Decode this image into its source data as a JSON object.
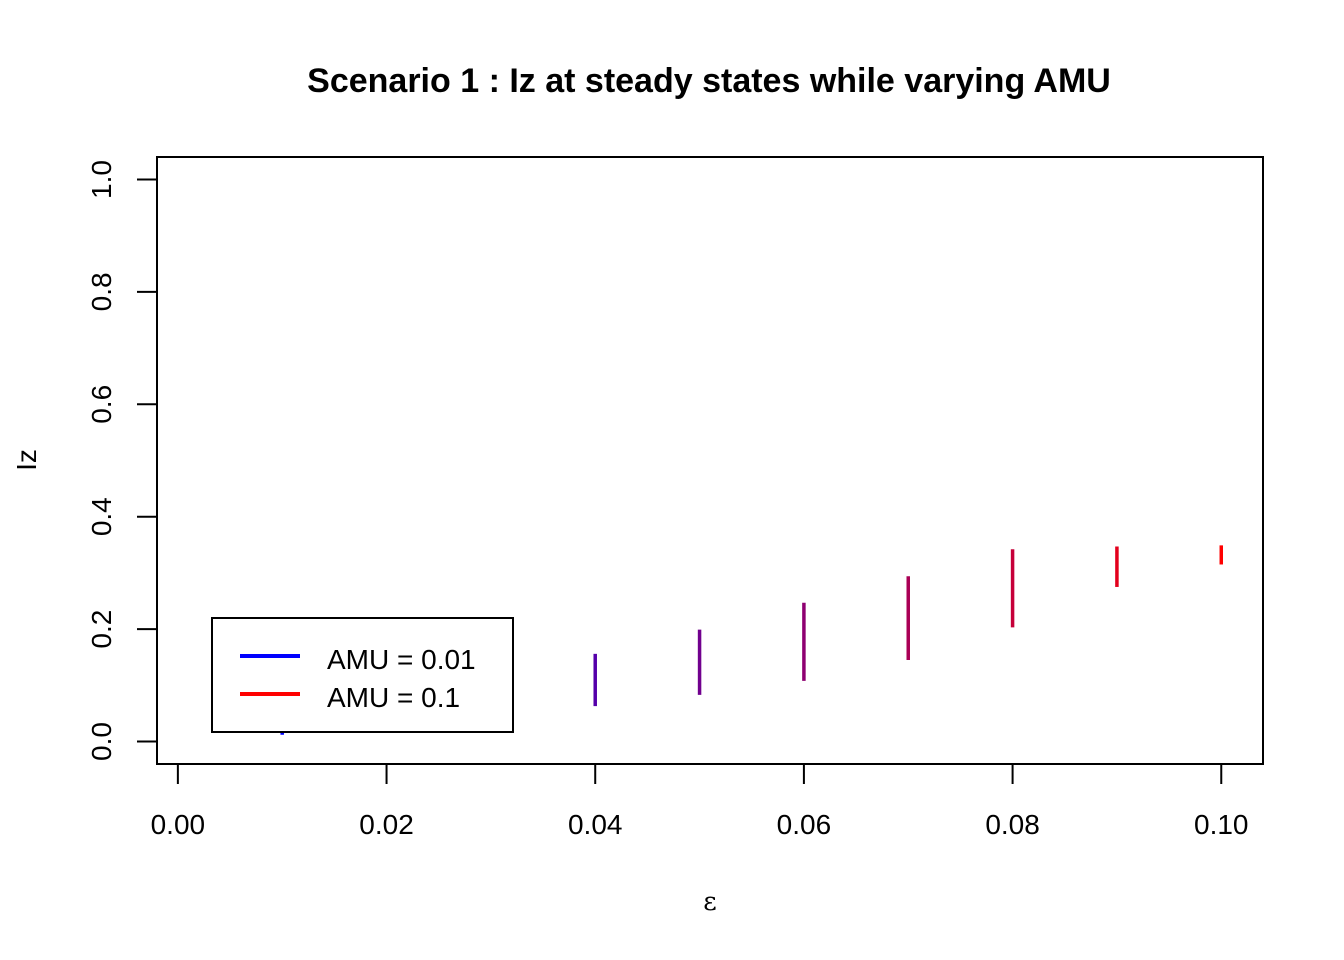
{
  "colors": {
    "low": "#0000ff",
    "high": "#ff0000",
    "axis": "#000000"
  },
  "chart_data": {
    "type": "range-segments",
    "title": "Scenario 1 : Iz at steady states while varying AMU",
    "xlabel": "ε",
    "ylabel": "Iz",
    "xlim": [
      -0.002,
      0.104
    ],
    "ylim": [
      -0.04,
      1.04
    ],
    "x_ticks": [
      0.0,
      0.02,
      0.04,
      0.06,
      0.08,
      0.1
    ],
    "x_tick_labels": [
      "0.00",
      "0.02",
      "0.04",
      "0.06",
      "0.08",
      "0.10"
    ],
    "y_ticks": [
      0.0,
      0.2,
      0.4,
      0.6,
      0.8,
      1.0
    ],
    "y_tick_labels": [
      "0.0",
      "0.2",
      "0.4",
      "0.6",
      "0.8",
      "1.0"
    ],
    "grid": false,
    "legend": {
      "position": "bottom-left",
      "entries": [
        {
          "label": "AMU = 0.01",
          "color": "#0000ff"
        },
        {
          "label": "AMU = 0.1",
          "color": "#ff0000"
        }
      ]
    },
    "segments": [
      {
        "x": 0.01,
        "y_min": 0.012,
        "y_max": 0.016
      },
      {
        "x": 0.04,
        "y_min": 0.063,
        "y_max": 0.156
      },
      {
        "x": 0.05,
        "y_min": 0.083,
        "y_max": 0.199
      },
      {
        "x": 0.06,
        "y_min": 0.108,
        "y_max": 0.247
      },
      {
        "x": 0.07,
        "y_min": 0.145,
        "y_max": 0.294
      },
      {
        "x": 0.08,
        "y_min": 0.203,
        "y_max": 0.342
      },
      {
        "x": 0.09,
        "y_min": 0.275,
        "y_max": 0.347
      },
      {
        "x": 0.1,
        "y_min": 0.315,
        "y_max": 0.349
      }
    ]
  }
}
